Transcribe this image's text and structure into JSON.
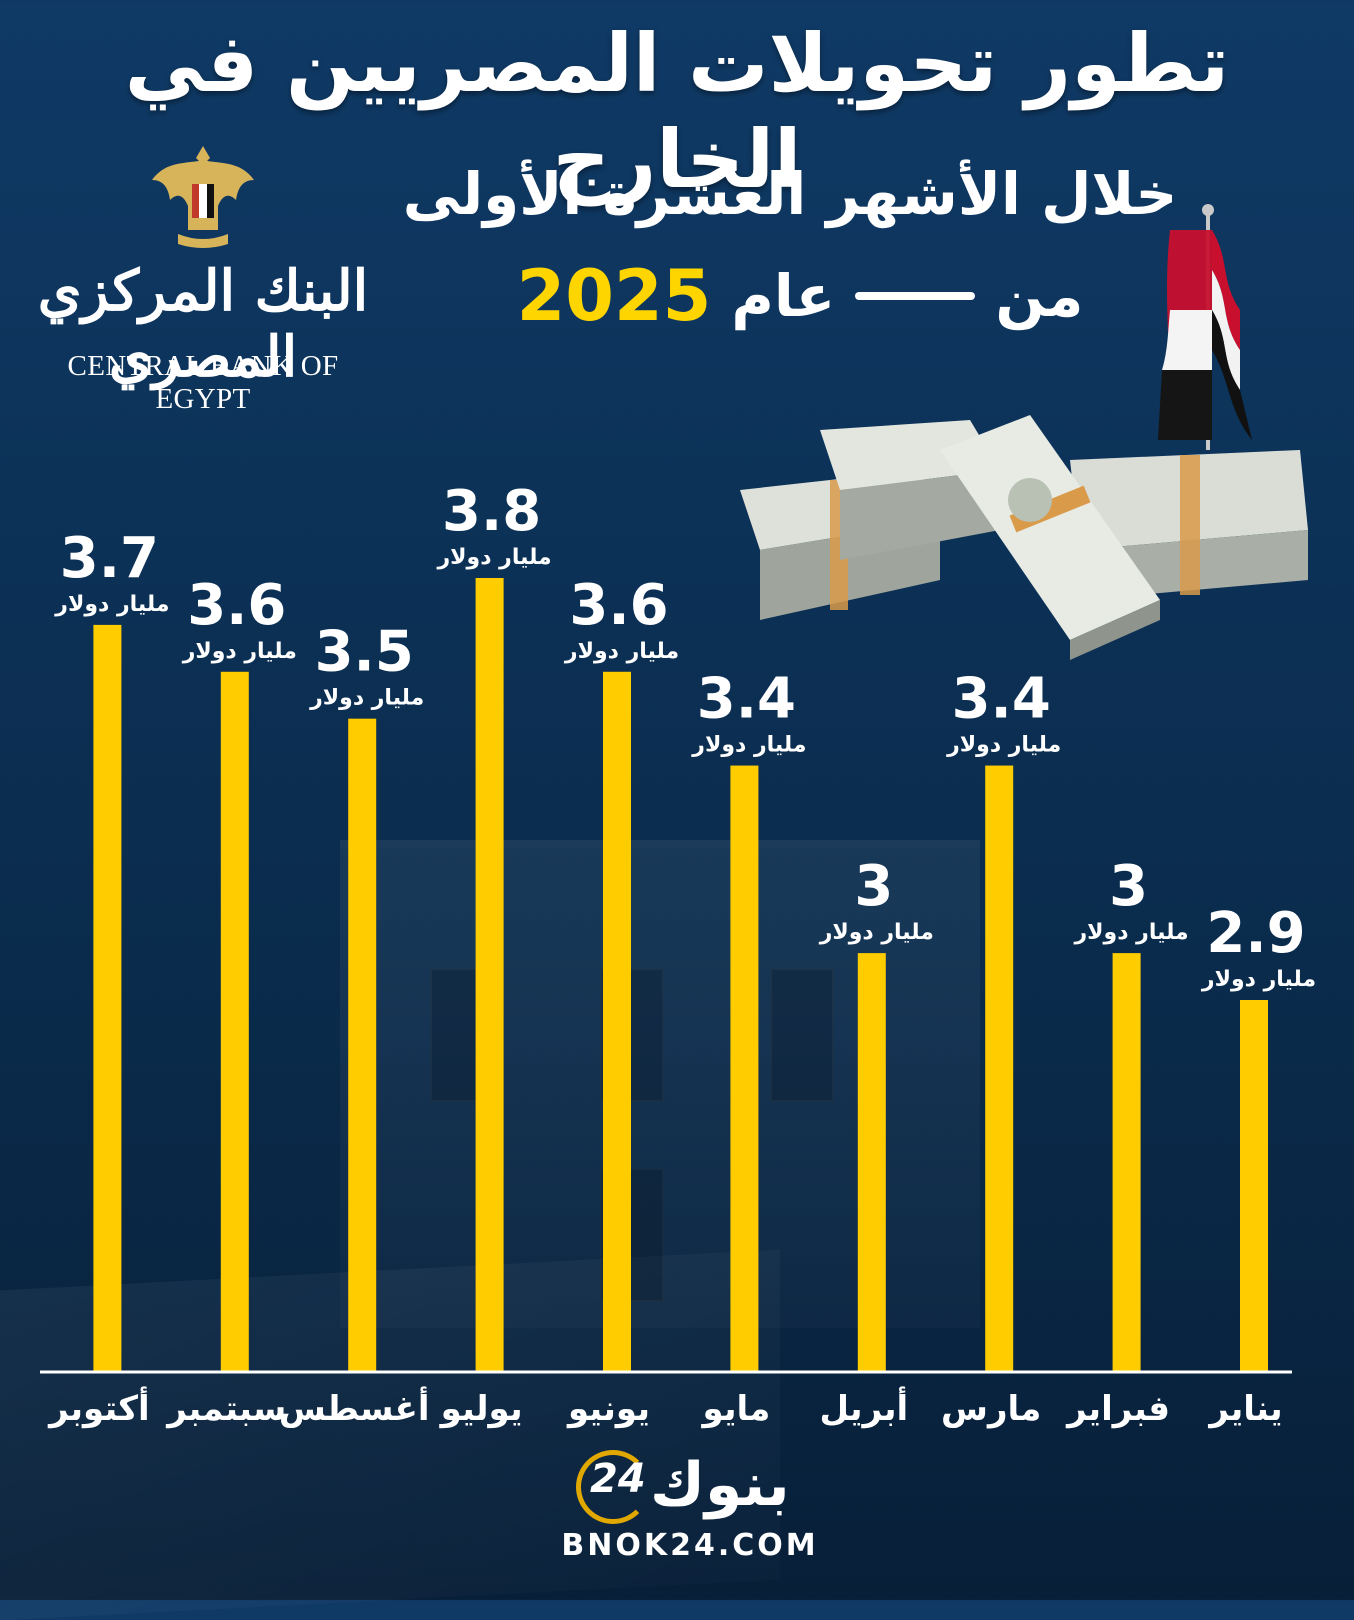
{
  "header": {
    "title": "تطور تحويلات المصريين في الخارج",
    "subtitle_line1": "خلال الأشهر العشرة الأولى",
    "subtitle_min": "من",
    "subtitle_aam": "عام",
    "subtitle_year": "2025"
  },
  "logo": {
    "name_ar": "البنك المركزي المصري",
    "name_en": "CENTRAL BANK OF EGYPT"
  },
  "footer": {
    "brand_ar": "بنوك",
    "brand_num": "24",
    "url": "BNOK24.COM"
  },
  "colors": {
    "bar": "#ffcc00",
    "background": "#0c3156",
    "year_accent": "#ffd500"
  },
  "chart_data": {
    "type": "bar",
    "categories": [
      "يناير",
      "فبراير",
      "مارس",
      "أبريل",
      "مايو",
      "يونيو",
      "يوليو",
      "أغسطس",
      "سبتمبر",
      "أكتوبر"
    ],
    "values": [
      2.9,
      3,
      3.4,
      3,
      3.4,
      3.6,
      3.8,
      3.5,
      3.6,
      3.7
    ],
    "value_labels": [
      "2.9",
      "3",
      "3.4",
      "3",
      "3.4",
      "3.6",
      "3.8",
      "3.5",
      "3.6",
      "3.7"
    ],
    "unit_label": "مليار دولار",
    "category_order": "right-to-left",
    "title": "",
    "xlabel": "",
    "ylabel": ""
  }
}
